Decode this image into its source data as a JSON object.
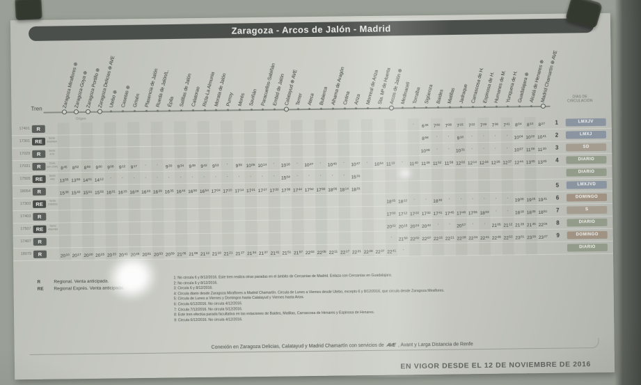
{
  "title": "Zaragoza - Arcos de Jalón - Madrid",
  "header": {
    "tren_label": "Tren",
    "origen_label": "Origen",
    "dias_line1": "DÍAS DE",
    "dias_line2": "CIRCULACIÓN"
  },
  "stations": [
    "Zaragoza Miraflores ⊕",
    "Zaragoza-Goya ⊕",
    "Zaragoza Portillo ⊕",
    "Zaragoza Delicias ⊕ AVE",
    "Utebo ⊕",
    "Casetas ⊕",
    "Grisén",
    "Plasencia de Jalón",
    "Rueda de Jalón/L.",
    "Épila",
    "Salillas de Jalón",
    "Calatorao",
    "Ricla-La Almunia",
    "Morata de Jalón",
    "Purroy",
    "Morés",
    "Saviñán",
    "Paracuellos-Sabiñán",
    "Embid de Jalón",
    "Calatayud ⊕ AVE",
    "Terrer",
    "Ateca",
    "Bubierca",
    "Alhama de Aragón",
    "Cetina",
    "Ariza",
    "Monreal de Ariza",
    "Sta. Mª de Huerta",
    "Arcos de Jalón ⊕",
    "Medinaceli",
    "Torralba",
    "Sigüenza",
    "Baides",
    "Matillas",
    "Jadraque",
    "Carrascosa de H.",
    "Espinosa de H.",
    "Humanes de M.",
    "Yunquera de H.",
    "Guadalajara ⊕",
    "Alcalá de Henares ⊕",
    "Madrid Chamartín ⊕ AVE"
  ],
  "interchange_cols": [
    1,
    2,
    3,
    4,
    20,
    29,
    42
  ],
  "rows": [
    {
      "train": "17401",
      "type": "R",
      "series": "",
      "note": "1",
      "days": "LMXJV",
      "times": [
        "",
        "",
        "",
        "",
        "",
        "",
        "",
        "",
        "",
        "",
        "",
        "",
        "",
        "",
        "",
        "",
        "",
        "",
        "",
        "",
        "",
        "",
        "",
        "",
        "",
        "",
        "",
        "",
        "",
        "",
        "·",
        "6:38",
        "7:00",
        "7:08",
        "7:15",
        "7:22",
        "7:29",
        "7:36",
        "7:41",
        "8:04",
        "8:10",
        "8:27"
      ]
    },
    {
      "train": "17301",
      "type": "RE",
      "series": "Serie 463/464",
      "note": "2",
      "days": "LMXJ",
      "times": [
        "",
        "",
        "",
        "",
        "",
        "",
        "",
        "",
        "",
        "",
        "",
        "",
        "",
        "",
        "",
        "",
        "",
        "",
        "",
        "",
        "",
        "",
        "",
        "",
        "",
        "",
        "",
        "",
        "",
        "",
        "",
        "8:58",
        "·",
        "·",
        "9:18",
        "·",
        "·",
        "·",
        "·",
        "10:04",
        "10:22",
        "10:41"
      ]
    },
    {
      "train": "17029",
      "type": "R",
      "series": "Serie 470",
      "note": "3",
      "days": "SD",
      "times": [
        "",
        "",
        "",
        "",
        "",
        "",
        "",
        "",
        "",
        "",
        "",
        "",
        "",
        "",
        "",
        "",
        "",
        "",
        "",
        "",
        "",
        "",
        "",
        "",
        "",
        "",
        "",
        "",
        "",
        "",
        "",
        "10:09",
        "·",
        "·",
        "10:31",
        "·",
        "·",
        "·",
        "·",
        "10:57",
        "11:09",
        "11:20"
      ]
    },
    {
      "train": "17031",
      "type": "R",
      "series": "Civia (s/n-254)",
      "note": "4",
      "days": "DIARIO",
      "times": [
        "8:45",
        "8:52",
        "8:55",
        "9:00",
        "9:08",
        "9:12",
        "9:17",
        "·",
        "·",
        "9:30",
        "9:34",
        "9:38",
        "9:42",
        "9:53",
        "·",
        "9:59",
        "10:05",
        "10:14",
        "·",
        "10:18",
        "·",
        "10:27",
        "·",
        "10:40",
        "·",
        "10:47",
        "·",
        "10:54",
        "11:10",
        "·",
        "11:40",
        "11:49",
        "11:52",
        "11:58",
        "12:02",
        "12:14",
        "12:18",
        "12:28",
        "12:37",
        "12:44",
        "13:05",
        "13:25"
      ]
    },
    {
      "train": "17505",
      "type": "RE",
      "series": "Serie 449",
      "note": "",
      "days": "DIARIO",
      "times": [
        "13:55",
        "13:59",
        "14:01",
        "14:12",
        "·",
        "·",
        "·",
        "·",
        "·",
        "·",
        "·",
        "·",
        "·",
        "·",
        "·",
        "·",
        "·",
        "·",
        "·",
        "15:04",
        "·",
        "·",
        "·",
        "·",
        "·",
        "15:31",
        "",
        "",
        "",
        "",
        "",
        "",
        "",
        "",
        "",
        "",
        "",
        "",
        "",
        "",
        "",
        ""
      ]
    },
    {
      "train": "18054",
      "type": "R",
      "series": "",
      "note": "5",
      "days": "LMXJVD",
      "times": [
        "15:38",
        "15:42",
        "15:51",
        "15:55",
        "16:01",
        "16:15",
        "16:19",
        "16:23",
        "16:29",
        "16:35",
        "16:44",
        "16:50",
        "16:54",
        "17:04",
        "17:10",
        "17:14",
        "17:21",
        "17:27",
        "17:30",
        "17:38",
        "17:44",
        "17:52",
        "17:58",
        "18:06",
        "18:14",
        "18:31",
        "",
        "",
        "",
        "",
        "",
        "",
        "",
        "",
        "",
        "",
        "",
        "",
        "",
        "",
        "",
        ""
      ]
    },
    {
      "train": "17303",
      "type": "RE",
      "series": "Serie 156/592",
      "note": "6",
      "days": "DOMINGO",
      "times": [
        "",
        "",
        "",
        "",
        "",
        "",
        "",
        "",
        "",
        "",
        "",
        "",
        "",
        "",
        "",
        "",
        "",
        "",
        "",
        "",
        "",
        "",
        "",
        "",
        "",
        "",
        "",
        "",
        "18:05",
        "18:12",
        "·",
        "·",
        "18:48",
        "·",
        "·",
        "·",
        "·",
        "·",
        "·",
        "19:08",
        "19:25",
        "19:41"
      ]
    },
    {
      "train": "17403",
      "type": "R",
      "series": "",
      "note": "7",
      "days": "S",
      "times": [
        "",
        "",
        "",
        "",
        "",
        "",
        "",
        "",
        "",
        "",
        "",
        "",
        "",
        "",
        "",
        "",
        "",
        "",
        "",
        "",
        "",
        "",
        "",
        "",
        "",
        "",
        "",
        "",
        "17:00",
        "17:12",
        "17:22",
        "17:32",
        "17:41",
        "17:45",
        "17:48",
        "17:55",
        "18:03",
        "·",
        "·",
        "18:18",
        "18:35",
        "18:51"
      ]
    },
    {
      "train": "17507",
      "type": "RE",
      "series": "Serie 458/469",
      "note": "8",
      "days": "DIARIO",
      "times": [
        "",
        "",
        "",
        "",
        "",
        "",
        "",
        "",
        "",
        "",
        "",
        "",
        "",
        "",
        "",
        "",
        "",
        "",
        "",
        "",
        "",
        "",
        "",
        "",
        "",
        "",
        "",
        "",
        "20:02",
        "20:15",
        "20:24",
        "20:44",
        "·",
        "·",
        "20:57",
        "·",
        "·",
        "21:05",
        "21:12",
        "21:28",
        "21:45",
        "22:04"
      ]
    },
    {
      "train": "17407",
      "type": "R",
      "series": "",
      "note": "9",
      "days": "DOMINGO",
      "times": [
        "",
        "",
        "",
        "",
        "",
        "",
        "",
        "",
        "",
        "",
        "",
        "",
        "",
        "",
        "",
        "",
        "",
        "",
        "",
        "",
        "",
        "",
        "",
        "",
        "",
        "",
        "",
        "",
        "·",
        "21:50",
        "22:02",
        "22:07",
        "22:15",
        "22:21",
        "22:28",
        "22:34",
        "22:41",
        "22:48",
        "22:53",
        "23:01",
        "23:15",
        "23:27"
      ]
    },
    {
      "train": "18079",
      "type": "R",
      "series": "",
      "note": "",
      "days": "DIARIO",
      "times": [
        "20:10",
        "20:17",
        "20:20",
        "20:25",
        "20:33",
        "20:41",
        "20:45",
        "20:51",
        "20:53",
        "20:59",
        "21:05",
        "21:08",
        "21:12",
        "21:18",
        "21:21",
        "21:27",
        "21:34",
        "21:37",
        "21:41",
        "21:51",
        "21:57",
        "22:02",
        "22:06",
        "22:11",
        "22:17",
        "22:21",
        "22:28",
        "22:37",
        "22:41",
        "·",
        "",
        "",
        "",
        "",
        "",
        "",
        "",
        "",
        "",
        "",
        "",
        ""
      ]
    }
  ],
  "legend": [
    {
      "code": "R",
      "text": "Regional. Venta anticipada."
    },
    {
      "code": "RE",
      "text": "Regional Exprés. Venta anticipada."
    }
  ],
  "notes": [
    "1: No circula 6 y 8/12/2016. Este tren realiza otras paradas en el ámbito de Cercanías de Madrid. Enlaza con Cercanías en Guadalajara.",
    "2: No circula 6 y 8/12/2016.",
    "3: Circula 6 y 8/12/2016.",
    "4: Circula diario desde Zaragoza Miraflores a Madrid Chamartín. Circula de Lunes a Viernes desde Utebo, excepto 6 y 8/12/2016, que circula desde Zaragoza Miraflores.",
    "5: Circula de Lunes a Viernes y Domingos hasta Calatayud y Viernes hasta Ariza.",
    "6: Circula 6/12/2016. No circula 4/12/2016.",
    "7: Circula 7/12/2016. No circula 5/12/2016.",
    "8: Este tren efectúa parada facultativa en las estaciones de Baides, Matillas, Carrascosa de Henares y Espinosa de Henares.",
    "9: Circula 6/12/2016. No circula 4/12/2016."
  ],
  "connection": {
    "prefix": "Conexión en Zaragoza Delicias, Calatayud y Madrid Chamartín con servicios de",
    "ave": "AVE",
    "suffix": ", Avant y Larga Distancia de Renfe"
  },
  "footer": {
    "effective": "EN VIGOR DESDE EL 12 DE NOVIEMBRE DE 2016"
  },
  "colors": {
    "title_bar_bg": "#4b4f4c",
    "badge_r": "#5a5f5b",
    "badge_re": "#474c48",
    "sheet_bg": "#c9cbc4",
    "case_bg": "#474d46"
  },
  "day_colors": {
    "DIARIO": "#939c8b",
    "LMXJV": "#8b95a1",
    "LMXJ": "#8b95a1",
    "LMXJVD": "#8b95a1",
    "S": "#a59d90",
    "SD": "#a59d90",
    "DOMINGO": "#a09384"
  }
}
